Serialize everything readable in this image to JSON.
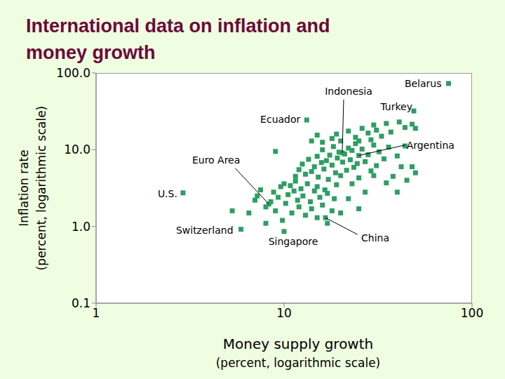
{
  "chart_data": {
    "type": "scatter",
    "title": [
      "International data on inflation and",
      "money growth"
    ],
    "xlabel": [
      "Money supply growth",
      "(percent, logarithmic scale)"
    ],
    "ylabel": [
      "Inflation rate",
      "(percent, logarithmic scale)"
    ],
    "log": true,
    "grid": false,
    "color": "#2f9e62",
    "marker": "square",
    "xlim": [
      1,
      100
    ],
    "xticks": [
      1,
      10,
      100
    ],
    "ylim": [
      0.1,
      100
    ],
    "yticks": [
      0.1,
      {
        "value": 1,
        "label": "1.0"
      },
      {
        "value": 10,
        "label": "10.0"
      },
      {
        "value": 100,
        "label": "100.0"
      }
    ],
    "x": [
      75,
      49,
      25,
      20.4,
      13.2,
      8.3,
      2.9,
      5.9,
      10,
      16.6,
      6.5,
      7,
      7.5,
      7.2,
      8,
      8.5,
      8.8,
      9,
      9.3,
      9.6,
      9.8,
      10.2,
      10.5,
      10.8,
      11,
      11.3,
      11.5,
      11.8,
      12,
      12.3,
      12.6,
      13,
      13.3,
      13.8,
      14,
      14.5,
      15,
      15.5,
      16,
      16.5,
      17,
      18,
      18.5,
      19,
      20,
      9,
      10,
      11.5,
      12,
      12.5,
      13,
      13.5,
      14,
      14.5,
      15,
      15.2,
      15.8,
      16,
      16.3,
      16.8,
      17.2,
      17.5,
      18,
      18.3,
      18.8,
      19.2,
      19.6,
      20,
      20.5,
      21,
      21.5,
      22,
      22.5,
      23,
      23.5,
      24,
      24.5,
      25,
      26,
      27,
      28,
      29,
      30,
      31,
      32,
      34,
      36,
      38,
      40,
      42,
      44,
      14,
      15,
      16,
      18,
      19,
      20,
      22,
      24,
      25,
      26,
      28,
      29,
      30,
      31,
      33,
      35,
      37,
      41,
      44,
      48,
      50,
      22,
      23,
      25,
      27,
      30,
      35,
      40,
      45,
      48,
      50,
      17,
      15,
      8,
      5.3
    ],
    "values": [
      73,
      32,
      8.4,
      9.1,
      24.4,
      1.96,
      2.74,
      0.92,
      0.86,
      1.3,
      1.5,
      2.2,
      3,
      2.5,
      1.8,
      2.1,
      2.8,
      1.6,
      2.4,
      3.3,
      1.2,
      2,
      2.6,
      3.4,
      1.5,
      2.9,
      3.9,
      2.2,
      1.8,
      3.1,
      2.5,
      1.4,
      3.6,
      2.1,
      1.7,
      2.9,
      3.3,
      2.4,
      1.9,
      3,
      2.7,
      1.6,
      2.3,
      3.5,
      1.5,
      9.5,
      3.6,
      4.5,
      5.5,
      6.5,
      4.8,
      7.5,
      5.2,
      6,
      8.2,
      4.4,
      6.8,
      10,
      5.6,
      7.2,
      4.1,
      8.5,
      6.3,
      11,
      5,
      7.8,
      9.3,
      4.6,
      6.9,
      8.8,
      5.4,
      10.5,
      7.4,
      9.8,
      5.9,
      12,
      6.6,
      4.3,
      10.2,
      7,
      8.6,
      5.3,
      11.5,
      6.2,
      9.4,
      7.6,
      10.8,
      4.5,
      8.3,
      6,
      11.2,
      13,
      15.5,
      12.5,
      14,
      16,
      13,
      17.5,
      14.5,
      13,
      19,
      16.5,
      13.5,
      21,
      18,
      15,
      22,
      17,
      23,
      19.5,
      21.5,
      19,
      2.3,
      3.6,
      1.7,
      2.8,
      4.6,
      3.7,
      2.8,
      4,
      6,
      5,
      1.1,
      1.3,
      1.1,
      1.6
    ],
    "annotations": [
      {
        "text": "Belarus",
        "x": 75,
        "y": 73
      },
      {
        "text": "Indonesia",
        "x": 20.4,
        "y": 9.1
      },
      {
        "text": "Turkey",
        "x": 49,
        "y": 32
      },
      {
        "text": "Argentina",
        "x": 25,
        "y": 8.4
      },
      {
        "text": "Ecuador",
        "x": 13.2,
        "y": 24.4
      },
      {
        "text": "Euro Area",
        "x": 8.3,
        "y": 1.96
      },
      {
        "text": "U.S.",
        "x": 2.9,
        "y": 2.74
      },
      {
        "text": "Switzerland",
        "x": 5.9,
        "y": 0.92
      },
      {
        "text": "Singapore",
        "x": 10,
        "y": 0.86
      },
      {
        "text": "China",
        "x": 16.6,
        "y": 1.3
      }
    ]
  }
}
